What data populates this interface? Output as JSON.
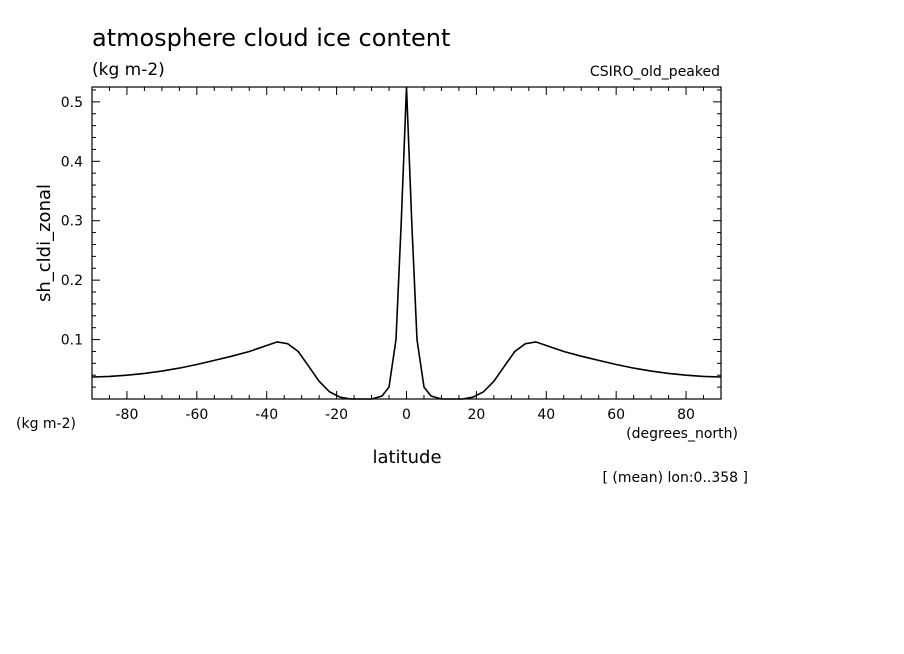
{
  "chart_data": {
    "type": "line",
    "title": "atmosphere cloud ice content",
    "units": "(kg m-2)",
    "model": "CSIRO_old_peaked",
    "ylabel": "sh_cldi_zonal",
    "xlabel": "latitude",
    "x_units": "(degrees_north)",
    "y_units": "(kg m-2)",
    "footnote": "[ (mean) lon:0..358 ]",
    "xlim": [
      -90,
      90
    ],
    "ylim": [
      0,
      0.525
    ],
    "x_ticks": [
      "-80",
      "-60",
      "-40",
      "-20",
      "0",
      "20",
      "40",
      "60",
      "80"
    ],
    "y_ticks": [
      "0.1",
      "0.2",
      "0.3",
      "0.4",
      "0.5"
    ],
    "grid": false,
    "x": [
      -90,
      -85,
      -80,
      -75,
      -70,
      -65,
      -60,
      -55,
      -50,
      -45,
      -40,
      -37,
      -34,
      -31,
      -28,
      -25,
      -22,
      -19,
      -16,
      -13,
      -10,
      -7,
      -5,
      -3,
      -1.5,
      0,
      1.5,
      3,
      5,
      7,
      10,
      13,
      16,
      19,
      22,
      25,
      28,
      31,
      34,
      37,
      40,
      45,
      50,
      55,
      60,
      65,
      70,
      75,
      80,
      85,
      90
    ],
    "y": [
      0.037,
      0.038,
      0.04,
      0.043,
      0.047,
      0.052,
      0.058,
      0.065,
      0.072,
      0.08,
      0.09,
      0.096,
      0.093,
      0.08,
      0.055,
      0.03,
      0.012,
      0.003,
      0.0,
      0.0,
      0.0,
      0.005,
      0.02,
      0.1,
      0.3,
      0.525,
      0.3,
      0.1,
      0.02,
      0.005,
      0.0,
      0.0,
      0.0,
      0.003,
      0.012,
      0.03,
      0.055,
      0.08,
      0.093,
      0.096,
      0.09,
      0.08,
      0.072,
      0.065,
      0.058,
      0.052,
      0.047,
      0.043,
      0.04,
      0.038,
      0.037
    ]
  }
}
